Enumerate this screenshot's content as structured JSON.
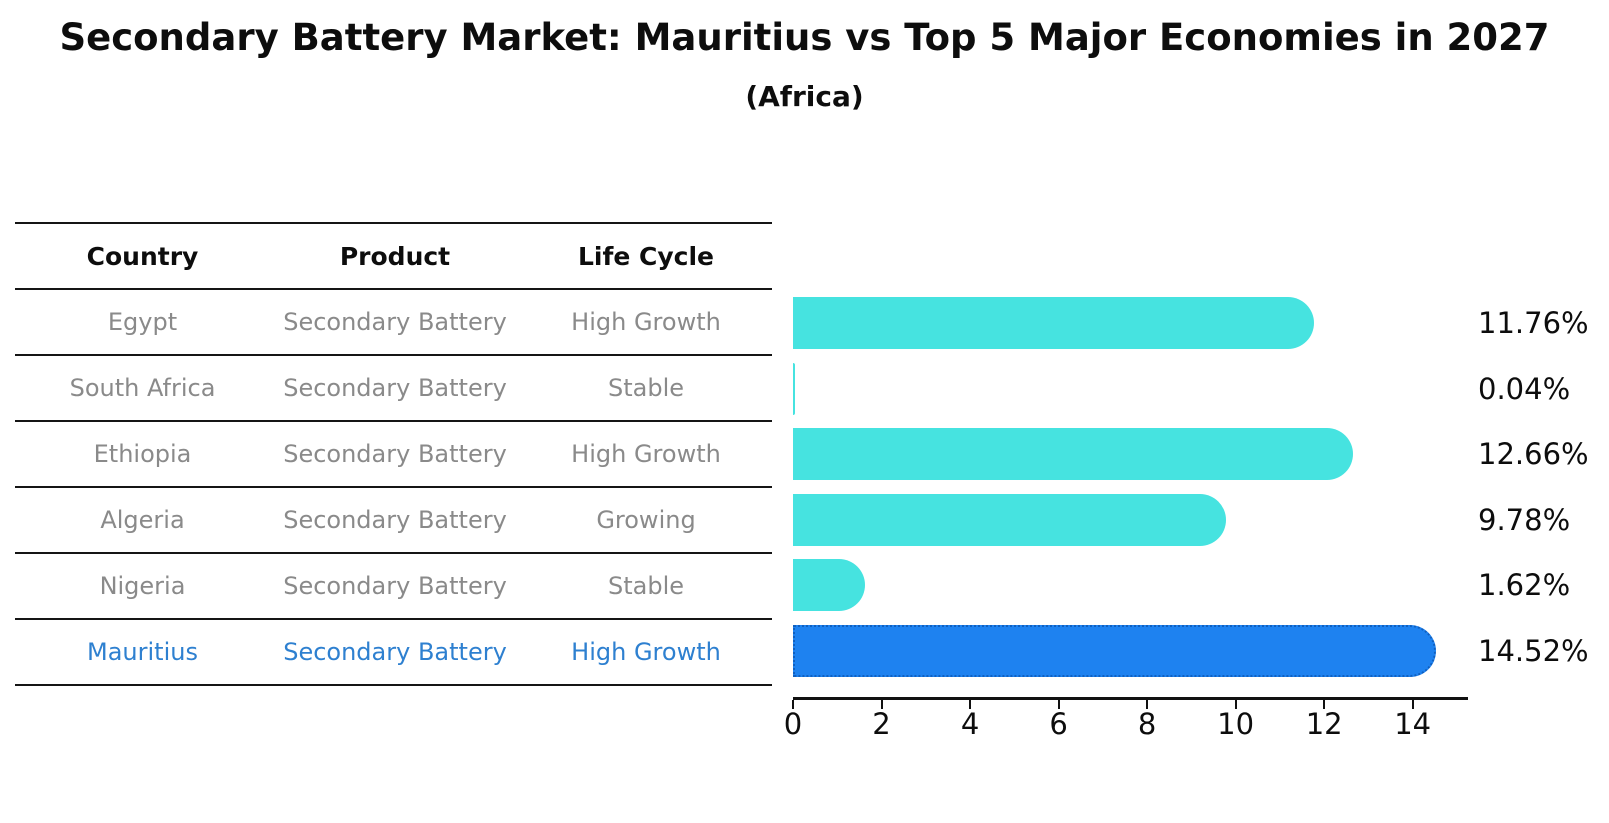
{
  "title": "Secondary Battery Market: Mauritius vs Top 5 Major Economies in 2027",
  "subtitle": "(Africa)",
  "table": {
    "headers": [
      "Country",
      "Product",
      "Life Cycle"
    ],
    "rows": [
      {
        "country": "Egypt",
        "product": "Secondary Battery",
        "life_cycle": "High Growth",
        "highlight": false
      },
      {
        "country": "South Africa",
        "product": "Secondary Battery",
        "life_cycle": "Stable",
        "highlight": false
      },
      {
        "country": "Ethiopia",
        "product": "Secondary Battery",
        "life_cycle": "High Growth",
        "highlight": false
      },
      {
        "country": "Algeria",
        "product": "Secondary Battery",
        "life_cycle": "Growing",
        "highlight": false
      },
      {
        "country": "Nigeria",
        "product": "Secondary Battery",
        "life_cycle": "Stable",
        "highlight": false
      },
      {
        "country": "Mauritius",
        "product": "Secondary Battery",
        "life_cycle": "High Growth",
        "highlight": true
      }
    ]
  },
  "chart_data": {
    "type": "bar",
    "orientation": "horizontal",
    "title": "Secondary Battery Market: Mauritius vs Top 5 Major Economies in 2027",
    "subtitle": "(Africa)",
    "categories": [
      "Egypt",
      "South Africa",
      "Ethiopia",
      "Algeria",
      "Nigeria",
      "Mauritius"
    ],
    "values": [
      11.76,
      0.04,
      12.66,
      9.78,
      1.62,
      14.52
    ],
    "value_labels": [
      "11.76%",
      "0.04%",
      "12.66%",
      "9.78%",
      "1.62%",
      "14.52%"
    ],
    "highlight_index": 5,
    "xticks": [
      0,
      2,
      4,
      6,
      8,
      10,
      12,
      14
    ],
    "xlim": [
      0,
      15.25
    ],
    "grid": false,
    "legend": "none",
    "xlabel": "",
    "ylabel": "",
    "colors": {
      "bar": "#46E3E0",
      "highlight_bar": "#1E82F0",
      "highlight_border": "#1060C0",
      "highlight_text": "#2e80d0",
      "table_text": "#8a8a8a",
      "header_text": "#0d0d0d",
      "axis": "#111111"
    }
  }
}
